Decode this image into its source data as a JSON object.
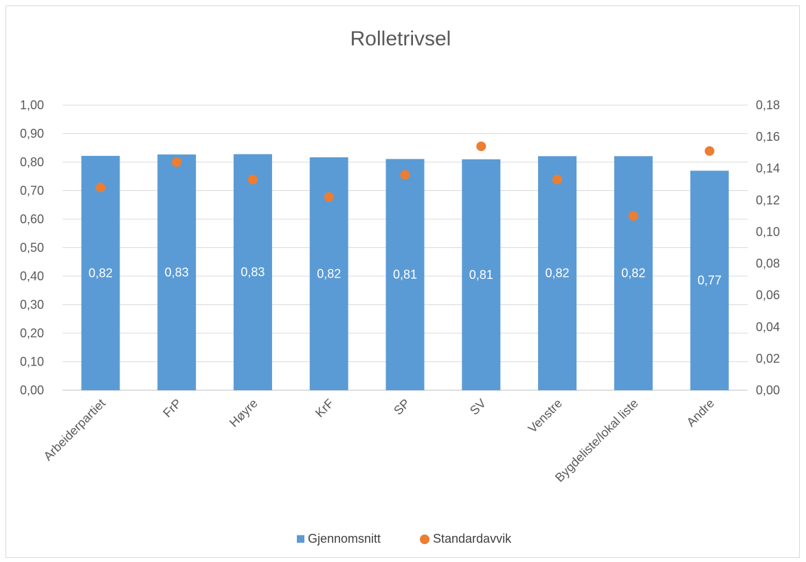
{
  "chart_data": {
    "type": "bar",
    "title": "Rolletrivsel",
    "categories": [
      "Arbeiderpartiet",
      "FrP",
      "Høyre",
      "KrF",
      "SP",
      "SV",
      "Venstre",
      "Bygdeliste/lokal liste",
      "Andre"
    ],
    "series": [
      {
        "name": "Gjennomsnitt",
        "type": "bar",
        "axis": "left",
        "color": "#5b9bd5",
        "values": [
          0.822,
          0.827,
          0.828,
          0.817,
          0.811,
          0.81,
          0.821,
          0.821,
          0.77
        ],
        "labels": [
          "0,82",
          "0,83",
          "0,83",
          "0,82",
          "0,81",
          "0,81",
          "0,82",
          "0,82",
          "0,77"
        ]
      },
      {
        "name": "Standardavvik",
        "type": "scatter",
        "axis": "right",
        "color": "#ed7d31",
        "values": [
          0.128,
          0.144,
          0.133,
          0.122,
          0.136,
          0.154,
          0.133,
          0.11,
          0.151
        ]
      }
    ],
    "left_axis": {
      "ylim": [
        0,
        1.0
      ],
      "ticks": [
        "0,00",
        "0,10",
        "0,20",
        "0,30",
        "0,40",
        "0,50",
        "0,60",
        "0,70",
        "0,80",
        "0,90",
        "1,00"
      ]
    },
    "right_axis": {
      "ylim": [
        0,
        0.18
      ],
      "ticks": [
        "0,00",
        "0,02",
        "0,04",
        "0,06",
        "0,08",
        "0,10",
        "0,12",
        "0,14",
        "0,16",
        "0,18"
      ]
    },
    "grid": true,
    "legend": "bottom"
  }
}
